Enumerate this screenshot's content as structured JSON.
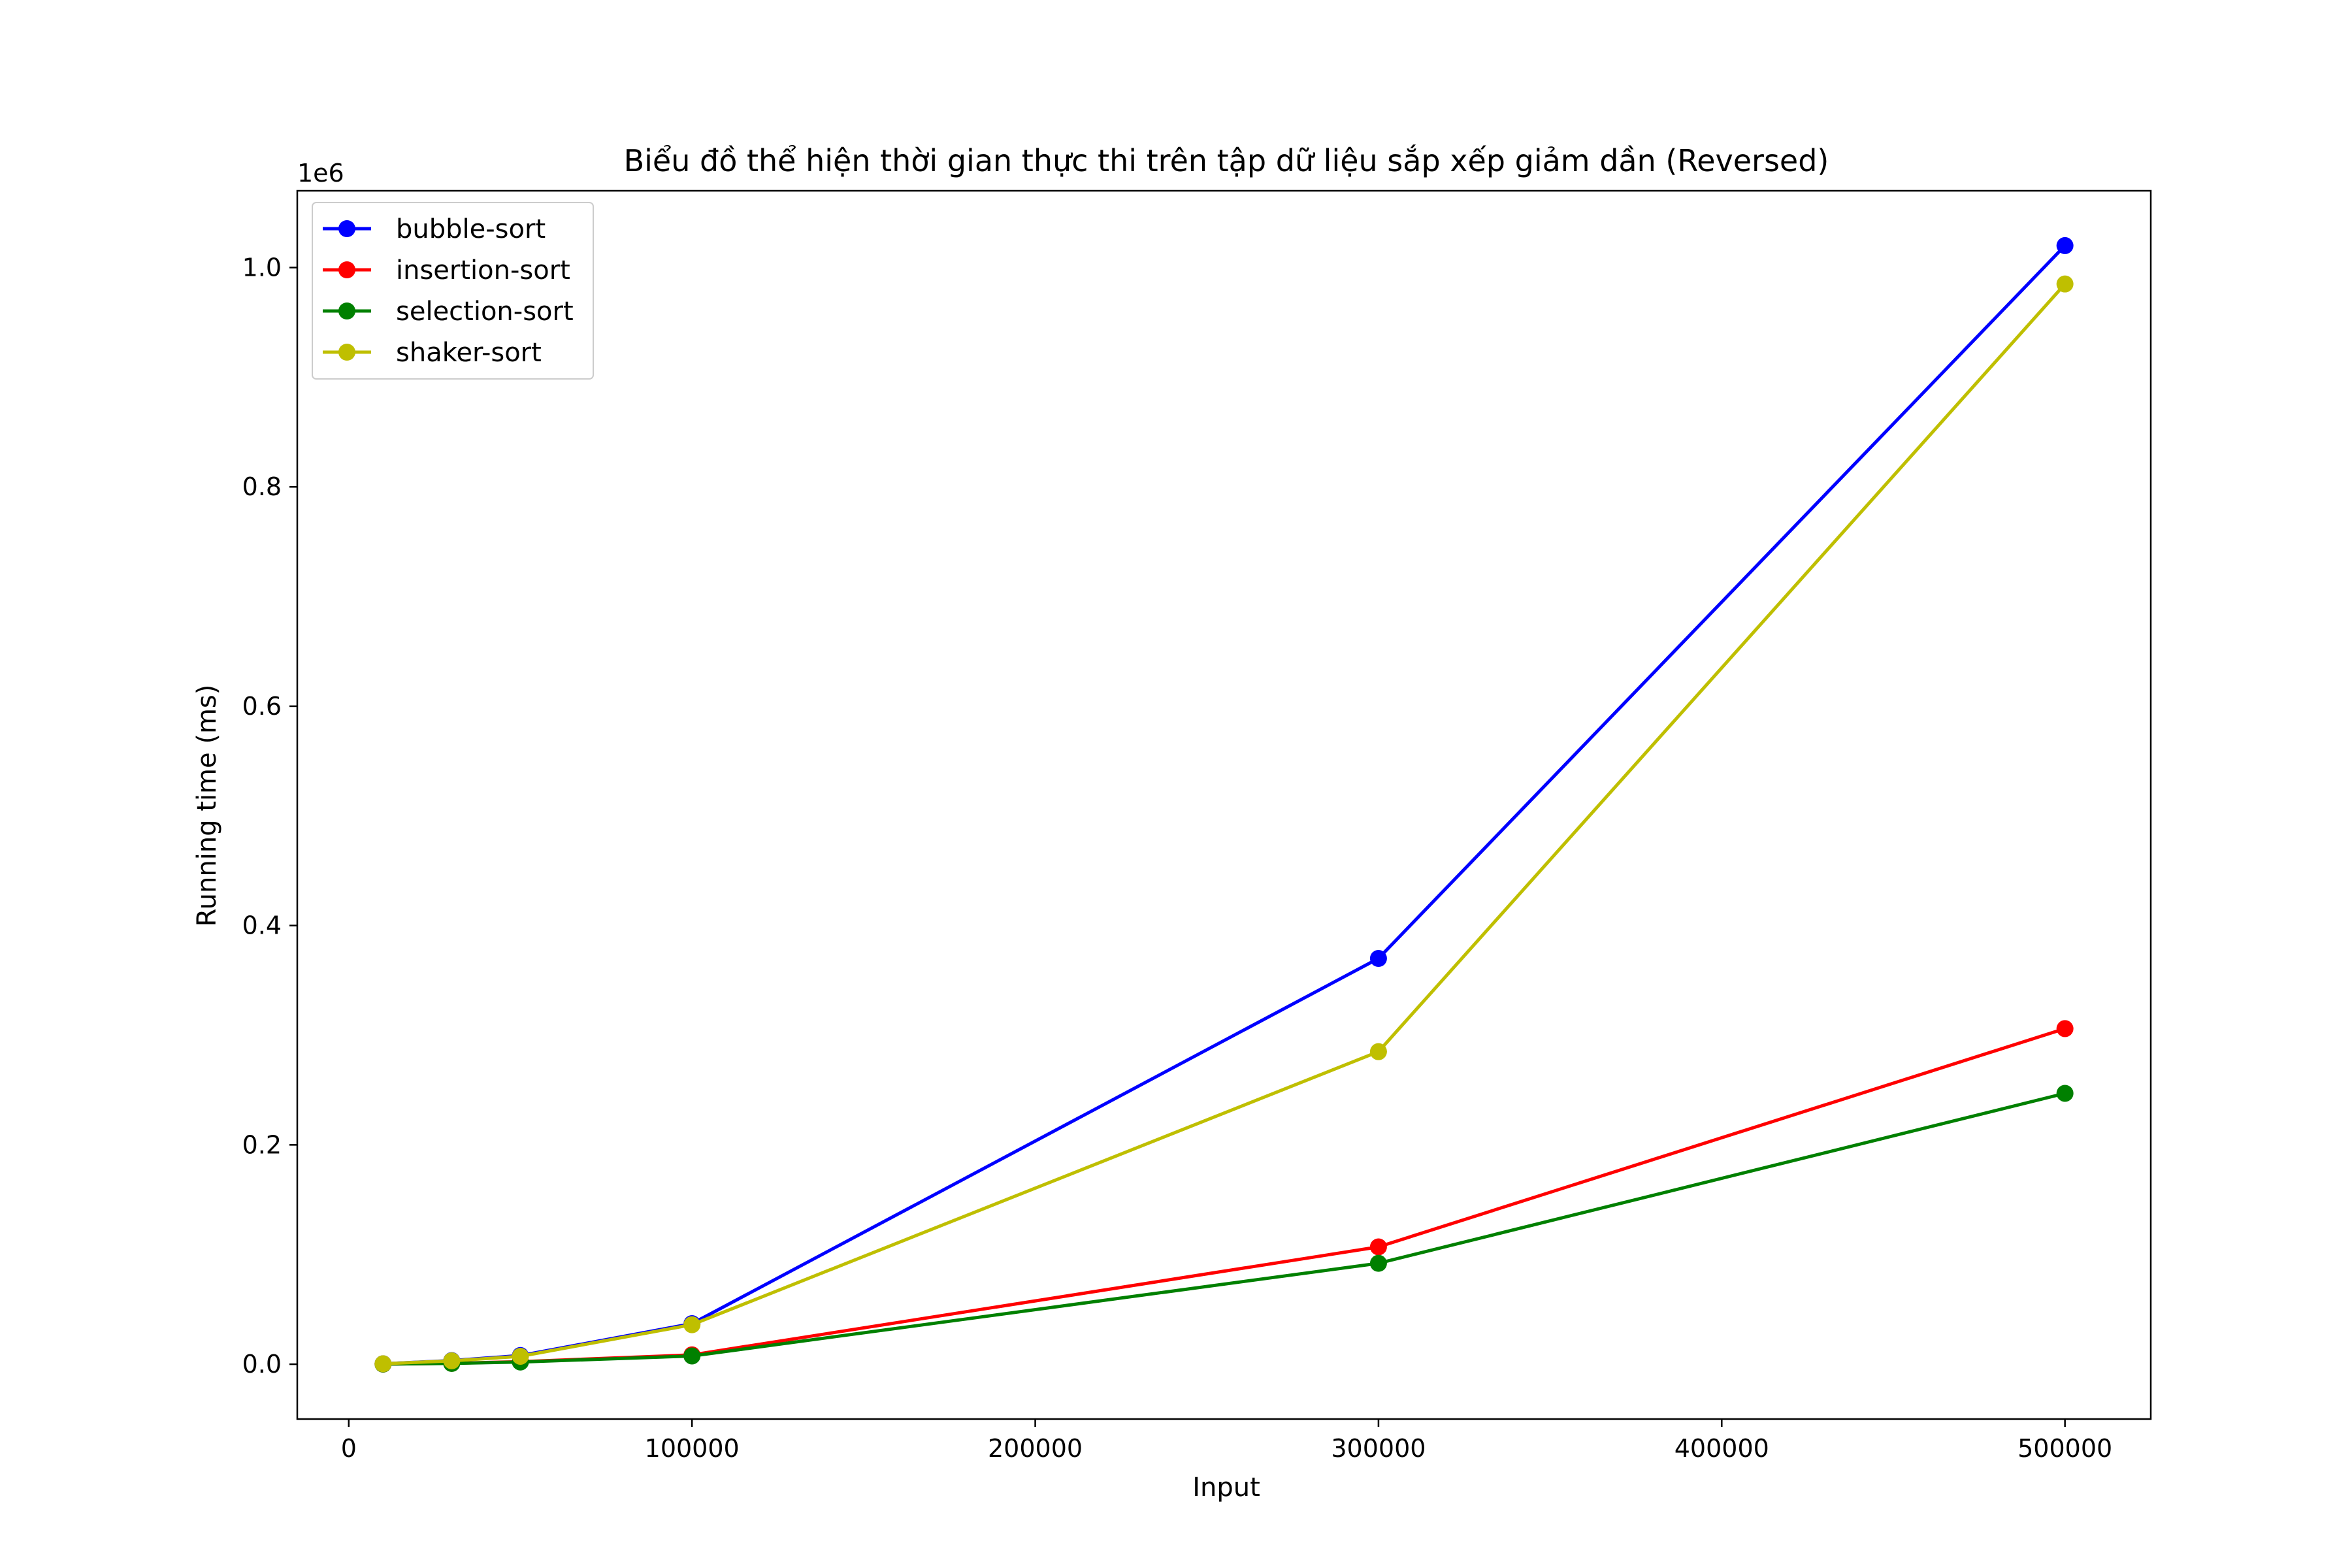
{
  "chart_data": {
    "type": "line",
    "title": "Biểu đồ thể hiện thời gian thực thi trên tập dữ liệu sắp xếp giảm dần (Reversed)",
    "xlabel": "Input",
    "ylabel": "Running time (ms)",
    "y_offset_label": "1e6",
    "xlim": [
      -15000,
      525000
    ],
    "ylim": [
      -0.05,
      1.07
    ],
    "x_ticks": [
      0,
      100000,
      200000,
      300000,
      400000,
      500000
    ],
    "x_tick_labels": [
      "0",
      "100000",
      "200000",
      "300000",
      "400000",
      "500000"
    ],
    "y_ticks": [
      0.0,
      0.2,
      0.4,
      0.6,
      0.8,
      1.0
    ],
    "y_tick_labels": [
      "0.0",
      "0.2",
      "0.4",
      "0.6",
      "0.8",
      "1.0"
    ],
    "grid": false,
    "legend_position": "top-left",
    "x": [
      10000,
      30000,
      50000,
      100000,
      300000,
      500000
    ],
    "series": [
      {
        "name": "bubble-sort",
        "color": "#0000ff",
        "values": [
          0.0004,
          0.0033,
          0.0079,
          0.037,
          0.37,
          1.02
        ]
      },
      {
        "name": "insertion-sort",
        "color": "#ff0000",
        "values": [
          0.0001,
          0.0008,
          0.0023,
          0.0085,
          0.107,
          0.306
        ]
      },
      {
        "name": "selection-sort",
        "color": "#008000",
        "values": [
          0.0001,
          0.0007,
          0.002,
          0.0075,
          0.092,
          0.247
        ]
      },
      {
        "name": "shaker-sort",
        "color": "#bfbf00",
        "values": [
          0.0004,
          0.0031,
          0.0072,
          0.036,
          0.285,
          0.985
        ]
      }
    ]
  }
}
